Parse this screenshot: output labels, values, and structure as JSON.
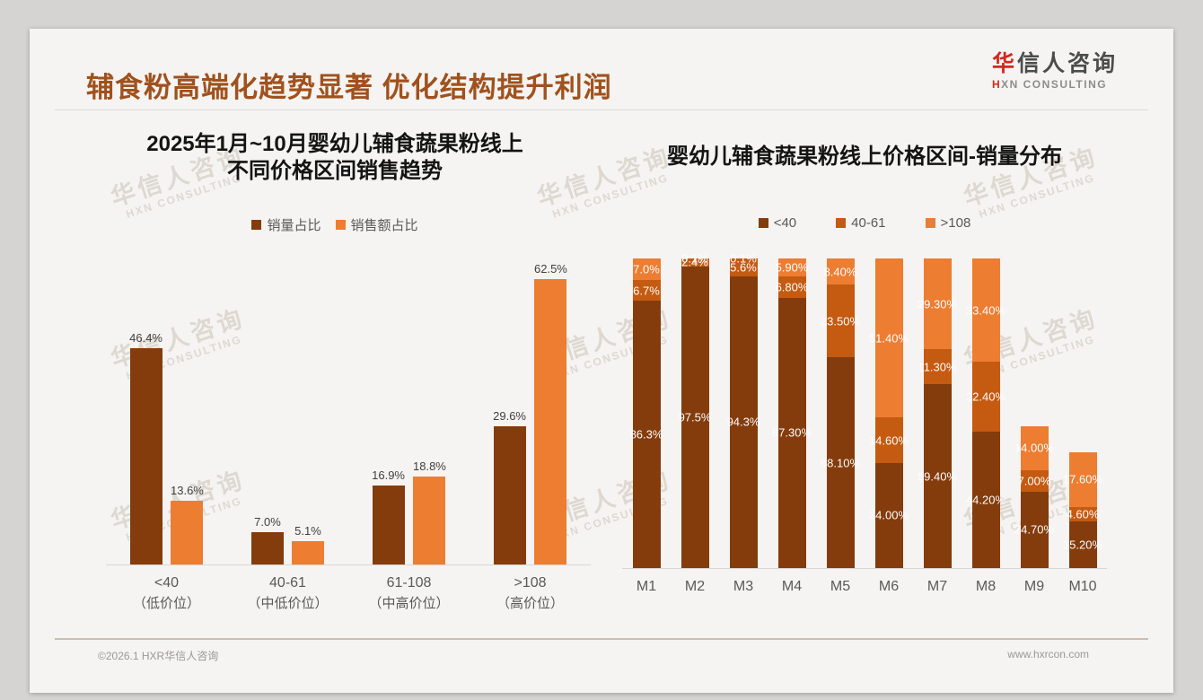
{
  "header": {
    "title": "辅食粉高端化趋势显著 优化结构提升利润",
    "logo": {
      "cn_accent": "华",
      "cn_rest": "信人咨询",
      "en_accent": "H",
      "en_rest": "XN CONSULTING"
    }
  },
  "watermark": {
    "line1": "华信人咨询",
    "line2": "HXN CONSULTING"
  },
  "footer": {
    "left": "©2026.1 HXR华信人咨询",
    "right": "www.hxrcon.com"
  },
  "colors": {
    "title_brown": "#a0511d",
    "series_dark": "#843C0C",
    "series_mid": "#C55A11",
    "series_light": "#ED7D31",
    "logo_red": "#d2281e"
  },
  "chart_data": [
    {
      "type": "bar",
      "title_lines": [
        "2025年1月~10月婴幼儿辅食蔬果粉线上",
        "不同价格区间销售趋势"
      ],
      "legend_position": "top",
      "grid": false,
      "ylim": [
        0,
        65
      ],
      "categories": [
        {
          "main": "<40",
          "sub": "（低价位）"
        },
        {
          "main": "40-61",
          "sub": "（中低价位）"
        },
        {
          "main": "61-108",
          "sub": "（中高价位）"
        },
        {
          "main": ">108",
          "sub": "（高价位）"
        }
      ],
      "series": [
        {
          "name": "销量占比",
          "color": "#843C0C",
          "values": [
            46.4,
            7.0,
            16.9,
            29.6
          ],
          "labels": [
            "46.4%",
            "7.0%",
            "16.9%",
            "29.6%"
          ]
        },
        {
          "name": "销售额占比",
          "color": "#ED7D31",
          "values": [
            13.6,
            5.1,
            18.8,
            62.5
          ],
          "labels": [
            "13.6%",
            "5.1%",
            "18.8%",
            "62.5%"
          ]
        }
      ]
    },
    {
      "type": "stacked-bar",
      "title": "婴幼儿辅食蔬果粉线上价格区间-销量分布",
      "legend_position": "top",
      "grid": false,
      "ylim": [
        0,
        100
      ],
      "categories": [
        "M1",
        "M2",
        "M3",
        "M4",
        "M5",
        "M6",
        "M7",
        "M8",
        "M9",
        "M10"
      ],
      "series": [
        {
          "name": "<40",
          "color": "#843C0C",
          "values": [
            86.3,
            97.5,
            94.3,
            87.3,
            68.1,
            34.0,
            59.4,
            44.2,
            24.7,
            15.2
          ],
          "labels": [
            "86.3%",
            "97.5%",
            "94.3%",
            "87.30%",
            "68.10%",
            "34.00%",
            "59.40%",
            "44.20%",
            "24.70%",
            "15.20%"
          ]
        },
        {
          "name": "40-61",
          "color": "#C55A11",
          "values": [
            6.7,
            2.4,
            5.6,
            6.8,
            23.5,
            14.6,
            11.3,
            22.4,
            7.0,
            4.6
          ],
          "labels": [
            "6.7%",
            "2.4%",
            "5.6%",
            "6.80%",
            "23.50%",
            "14.60%",
            "11.30%",
            "22.40%",
            "7.00%",
            "4.60%"
          ]
        },
        {
          "name": ">108",
          "color": "#ED7D31",
          "values": [
            7.0,
            0.1,
            0.1,
            5.9,
            8.4,
            51.4,
            29.3,
            33.4,
            14.0,
            17.6
          ],
          "labels": [
            "7.0%",
            "0.1%",
            "0.1%",
            "5.90%",
            "8.40%",
            "51.40%",
            "29.30%",
            "33.40%",
            "14.00%",
            "17.60%"
          ]
        }
      ]
    }
  ]
}
